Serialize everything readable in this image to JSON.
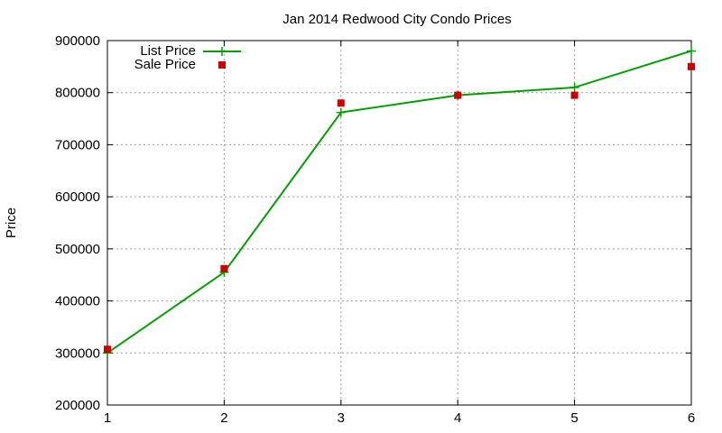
{
  "chart_data": {
    "type": "line",
    "title": "Jan 2014 Redwood City Condo Prices",
    "xlabel": "",
    "ylabel": "Price",
    "xlim": [
      1,
      6
    ],
    "ylim": [
      200000,
      900000
    ],
    "x_ticks": [
      "1",
      "2",
      "3",
      "4",
      "5",
      "6"
    ],
    "y_ticks": [
      "200000",
      "300000",
      "400000",
      "500000",
      "600000",
      "700000",
      "800000",
      "900000"
    ],
    "grid": true,
    "legend_position": "top-left",
    "series": [
      {
        "name": "List Price",
        "style": "lines+crosses",
        "color": "#00a000",
        "x": [
          1,
          2,
          3,
          4,
          5,
          6
        ],
        "values": [
          300000,
          455000,
          762000,
          795000,
          810000,
          880000
        ]
      },
      {
        "name": "Sale Price",
        "style": "square-points",
        "color": "#cc0000",
        "x": [
          1,
          2,
          3,
          4,
          5,
          6
        ],
        "values": [
          307000,
          462000,
          780000,
          795000,
          795000,
          850000
        ]
      }
    ]
  }
}
